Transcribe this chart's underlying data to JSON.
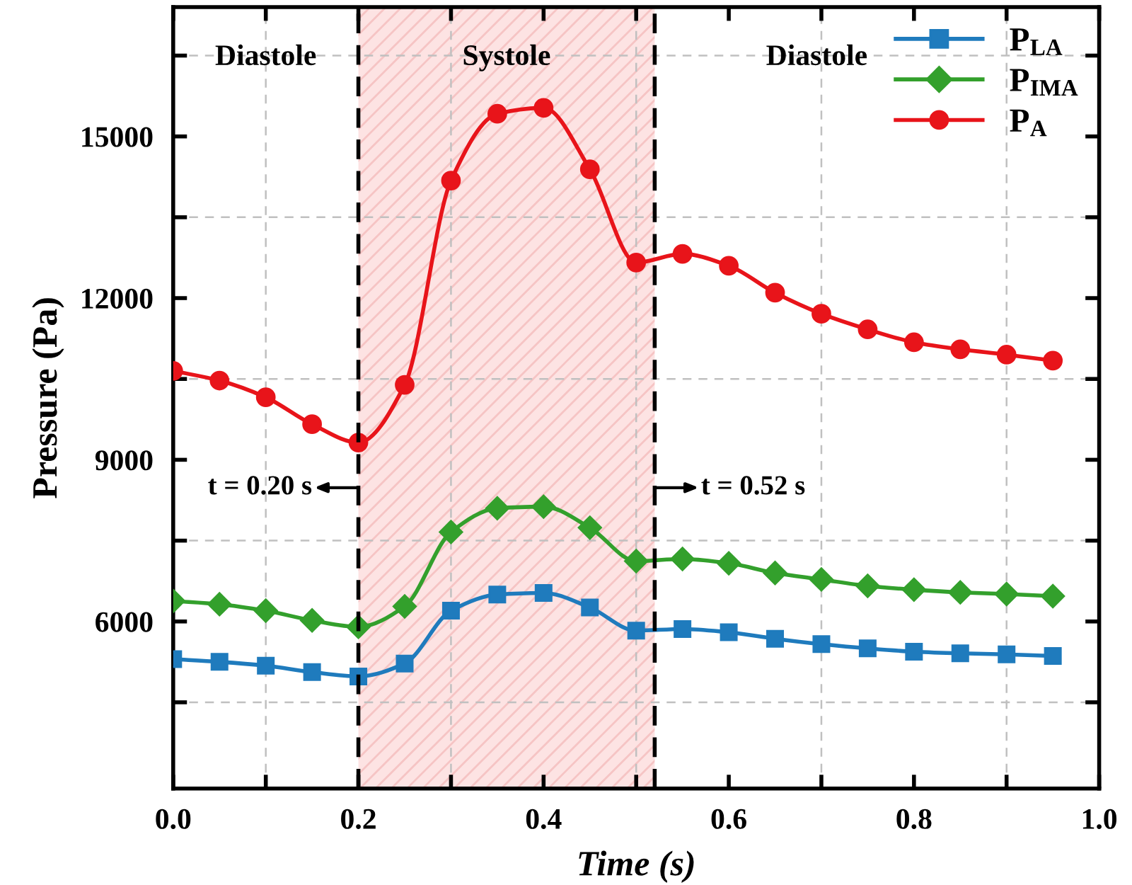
{
  "chart_data": {
    "type": "line",
    "xlabel": "Time (s)",
    "ylabel": "Pressure (Pa)",
    "x": [
      0.0,
      0.05,
      0.1,
      0.15,
      0.2,
      0.25,
      0.3,
      0.35,
      0.4,
      0.45,
      0.5,
      0.55,
      0.6,
      0.65,
      0.7,
      0.75,
      0.8,
      0.85,
      0.9,
      0.95
    ],
    "series": [
      {
        "name": "P$_{LA}$",
        "color": "#1f7bbd",
        "marker": "square",
        "values": [
          5300,
          5250,
          5180,
          5060,
          4980,
          5220,
          6200,
          6500,
          6530,
          6260,
          5830,
          5860,
          5800,
          5680,
          5580,
          5500,
          5440,
          5410,
          5390,
          5360
        ]
      },
      {
        "name": "P$_{IMA}$",
        "color": "#33a02c",
        "marker": "diamond",
        "values": [
          6380,
          6320,
          6200,
          6020,
          5900,
          6280,
          7660,
          8100,
          8130,
          7740,
          7120,
          7160,
          7080,
          6900,
          6780,
          6660,
          6590,
          6540,
          6510,
          6470
        ]
      },
      {
        "name": "P$_{A}$",
        "color": "#e8141a",
        "marker": "circle",
        "values": [
          10650,
          10470,
          10160,
          9660,
          9320,
          10390,
          14180,
          15420,
          15530,
          14390,
          12660,
          12820,
          12600,
          12100,
          11710,
          11420,
          11180,
          11050,
          10950,
          10840
        ]
      }
    ],
    "xlim": [
      0,
      1.0
    ],
    "xticks": [
      {
        "value": 0,
        "label": "0.0"
      },
      {
        "value": 0.1,
        "label": null
      },
      {
        "value": 0.2,
        "label": "0.2"
      },
      {
        "value": 0.3,
        "label": null
      },
      {
        "value": 0.4,
        "label": "0.4"
      },
      {
        "value": 0.5,
        "label": null
      },
      {
        "value": 0.6,
        "label": "0.6"
      },
      {
        "value": 0.7,
        "label": null
      },
      {
        "value": 0.8,
        "label": "0.8"
      },
      {
        "value": 0.9,
        "label": null
      },
      {
        "value": 1.0,
        "label": "1.0"
      }
    ],
    "ylim": [
      2900,
      17400
    ],
    "yticks": [
      {
        "value": 4500,
        "label": null
      },
      6000,
      {
        "value": 7500,
        "label": null
      },
      9000,
      {
        "value": 10500,
        "label": null
      },
      12000,
      {
        "value": 13500,
        "label": null
      },
      15000,
      {
        "value": 16500,
        "label": null
      }
    ],
    "grid": true,
    "legend": "top right",
    "ref_lines": [
      {
        "axis": "x",
        "value": 0.2,
        "label": "t = 0.20 s",
        "color": "#000000",
        "line_style": "dashed"
      },
      {
        "axis": "x",
        "value": 0.52,
        "label": "t = 0.52 s",
        "color": "#000000",
        "line_style": "dashed"
      }
    ],
    "bands": [
      {
        "axis": "x",
        "from": 0.2,
        "to": 0.52,
        "label": "Systole",
        "color": "#fde3e3"
      }
    ],
    "annotations": [
      "Diastole",
      "Diastole"
    ]
  }
}
